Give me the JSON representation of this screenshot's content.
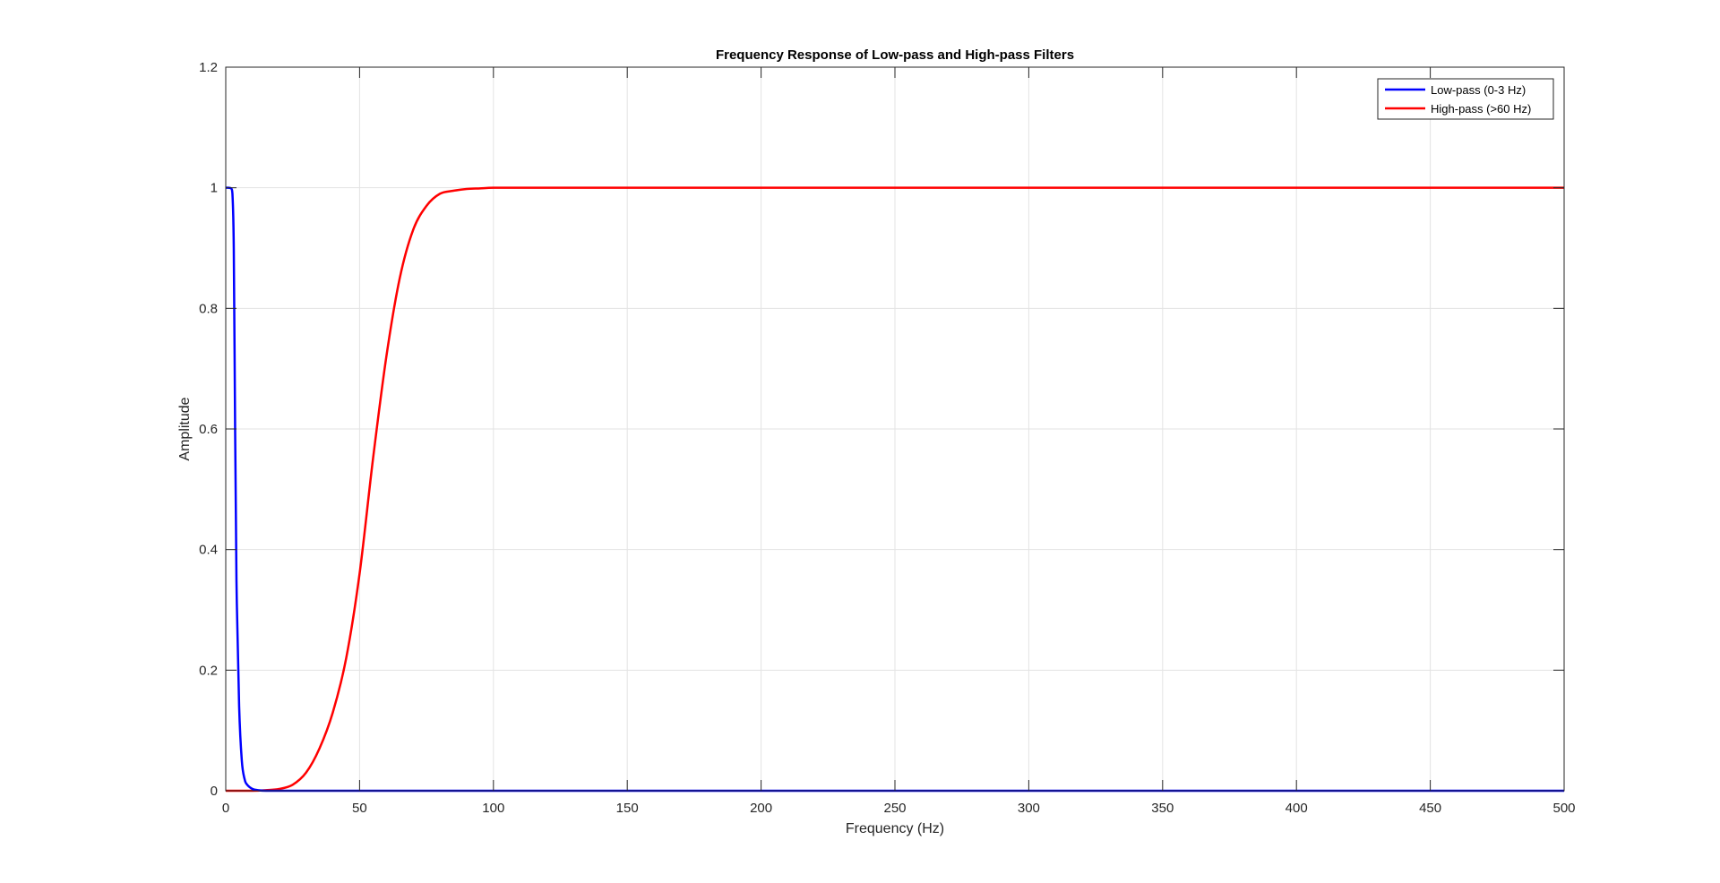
{
  "chart_data": {
    "type": "line",
    "title": "Frequency Response of Low-pass and High-pass Filters",
    "xlabel": "Frequency (Hz)",
    "ylabel": "Amplitude",
    "xlim": [
      0,
      500
    ],
    "ylim": [
      0,
      1.2
    ],
    "xticks": [
      0,
      50,
      100,
      150,
      200,
      250,
      300,
      350,
      400,
      450,
      500
    ],
    "yticks": [
      0,
      0.2,
      0.4,
      0.6,
      0.8,
      1,
      1.2
    ],
    "xtick_labels": [
      "0",
      "50",
      "100",
      "150",
      "200",
      "250",
      "300",
      "350",
      "400",
      "450",
      "500"
    ],
    "ytick_labels": [
      "0",
      "0.2",
      "0.4",
      "0.6",
      "0.8",
      "1",
      "1.2"
    ],
    "grid": true,
    "legend_position": "top-right",
    "series": [
      {
        "name": "Low-pass (0-3 Hz)",
        "color": "#0000ff",
        "x": [
          0,
          1,
          2,
          2.5,
          3,
          3.5,
          4,
          5,
          6,
          7,
          8,
          10,
          12,
          15,
          20,
          30,
          50,
          100,
          200,
          300,
          400,
          500
        ],
        "y": [
          1,
          1,
          0.999,
          0.99,
          0.9,
          0.6,
          0.35,
          0.14,
          0.05,
          0.02,
          0.01,
          0.003,
          0.001,
          0,
          0,
          0,
          0,
          0,
          0,
          0,
          0,
          0
        ]
      },
      {
        "name": "High-pass (>60 Hz)",
        "color": "#ff0000",
        "x": [
          0,
          10,
          15,
          20,
          25,
          30,
          35,
          40,
          45,
          50,
          55,
          60,
          65,
          70,
          75,
          80,
          85,
          90,
          95,
          100,
          110,
          120,
          150,
          200,
          300,
          400,
          500
        ],
        "y": [
          0,
          0,
          0.001,
          0.003,
          0.01,
          0.03,
          0.07,
          0.13,
          0.22,
          0.36,
          0.55,
          0.72,
          0.85,
          0.93,
          0.97,
          0.99,
          0.995,
          0.998,
          0.999,
          1,
          1,
          1,
          1,
          1,
          1,
          1,
          1
        ]
      }
    ]
  }
}
